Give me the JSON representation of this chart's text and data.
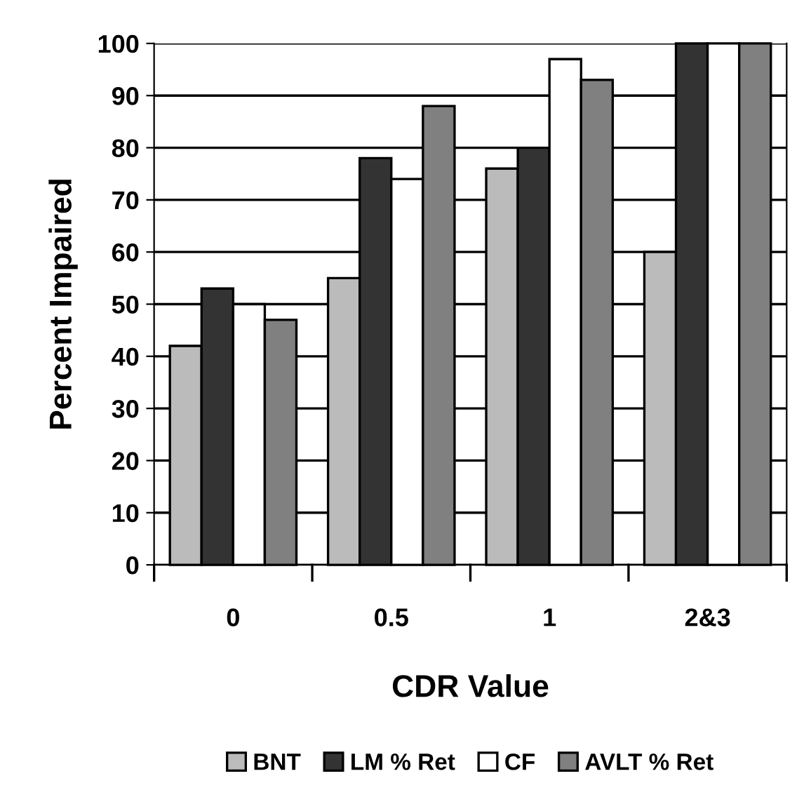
{
  "chart_data": {
    "type": "bar",
    "xlabel": "CDR Value",
    "ylabel": "Percent Impaired",
    "categories": [
      "0",
      "0.5",
      "1",
      "2&3"
    ],
    "series": [
      {
        "name": "BNT",
        "color": "#bbbbbb",
        "values": [
          42,
          55,
          76,
          60
        ]
      },
      {
        "name": "LM % Ret",
        "color": "#333333",
        "values": [
          53,
          78,
          80,
          100
        ]
      },
      {
        "name": "CF",
        "color": "#ffffff",
        "values": [
          50,
          74,
          97,
          100
        ]
      },
      {
        "name": "AVLT % Ret",
        "color": "#808080",
        "values": [
          47,
          88,
          93,
          100
        ]
      }
    ],
    "ylim": [
      0,
      100
    ],
    "yticks": [
      0,
      10,
      20,
      30,
      40,
      50,
      60,
      70,
      80,
      90,
      100
    ],
    "grid": "y",
    "legend": "bottom"
  }
}
